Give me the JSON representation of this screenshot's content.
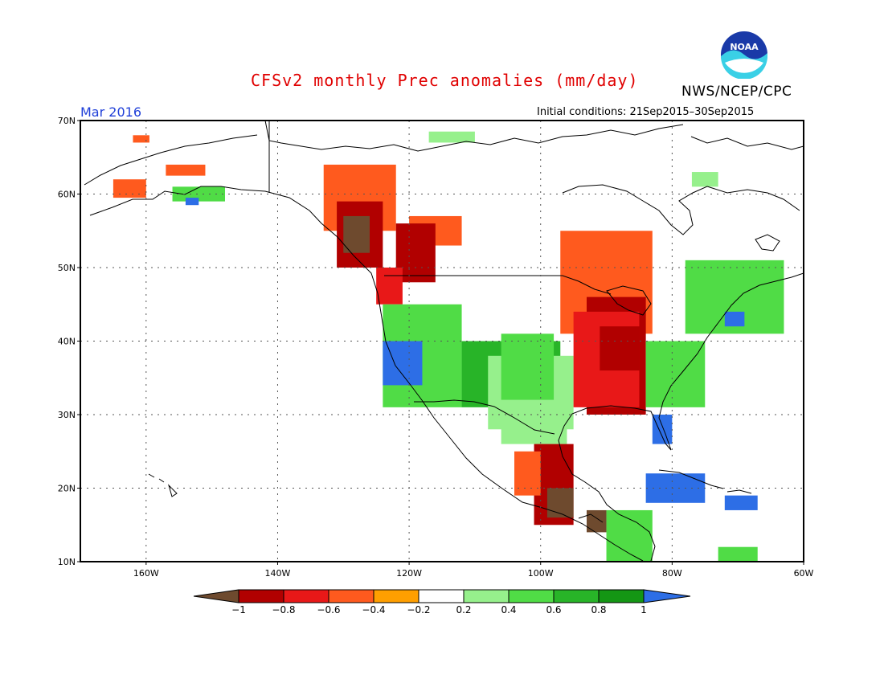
{
  "title": "CFSv2 monthly Prec anomalies (mm/day)",
  "agency": "NWS/NCEP/CPC",
  "logo_text": "NOAA",
  "month": "Mar 2016",
  "initial_conditions": "Initial conditions: 21Sep2015–30Sep2015",
  "colors": {
    "frame": "#000000",
    "coast": "#000000",
    "grid": "#555555"
  },
  "map": {
    "lat_range": [
      10,
      70
    ],
    "lon_range": [
      -170,
      -60
    ],
    "lat_ticks": [
      {
        "value": 70,
        "label": "70N"
      },
      {
        "value": 60,
        "label": "60N"
      },
      {
        "value": 50,
        "label": "50N"
      },
      {
        "value": 40,
        "label": "40N"
      },
      {
        "value": 30,
        "label": "30N"
      },
      {
        "value": 20,
        "label": "20N"
      },
      {
        "value": 10,
        "label": "10N"
      }
    ],
    "lon_ticks": [
      {
        "value": -160,
        "label": "160W"
      },
      {
        "value": -140,
        "label": "140W"
      },
      {
        "value": -120,
        "label": "120W"
      },
      {
        "value": -100,
        "label": "100W"
      },
      {
        "value": -80,
        "label": "80W"
      },
      {
        "value": -60,
        "label": "60W"
      }
    ]
  },
  "colorbar": {
    "levels": [
      "−1",
      "−0.8",
      "−0.6",
      "−0.4",
      "−0.2",
      "0.2",
      "0.4",
      "0.6",
      "0.8",
      "1"
    ],
    "colors": [
      "#6e4a2e",
      "#b10000",
      "#e81818",
      "#ff5a1e",
      "#ff9f00",
      "#ffffff",
      "#96f08c",
      "#50dc46",
      "#28b428",
      "#149614",
      "#2d6ee6"
    ]
  },
  "anomaly_regions": [
    {
      "name": "alaska-south-orange",
      "class": 3,
      "lat": [
        59.5,
        62
      ],
      "lon": [
        -165,
        -160
      ]
    },
    {
      "name": "alaska-southwest-orange",
      "class": 3,
      "lat": [
        62.5,
        64
      ],
      "lon": [
        -157,
        -151
      ]
    },
    {
      "name": "alaska-nw-orange",
      "class": 3,
      "lat": [
        67,
        68
      ],
      "lon": [
        -162,
        -159.5
      ]
    },
    {
      "name": "alaska-green",
      "class": 7,
      "lat": [
        59,
        61
      ],
      "lon": [
        -156,
        -148
      ]
    },
    {
      "name": "alaska-blue",
      "class": 10,
      "lat": [
        58.5,
        59.5
      ],
      "lon": [
        -154,
        -152
      ]
    },
    {
      "name": "bc-north-orange",
      "class": 3,
      "lat": [
        55,
        64
      ],
      "lon": [
        -133,
        -122
      ]
    },
    {
      "name": "bc-interior-orange",
      "class": 3,
      "lat": [
        53,
        57
      ],
      "lon": [
        -120,
        -112
      ]
    },
    {
      "name": "bc-coast-red",
      "class": 1,
      "lat": [
        50,
        59
      ],
      "lon": [
        -131,
        -124
      ]
    },
    {
      "name": "bc-coast-brown",
      "class": 0,
      "lat": [
        52,
        57
      ],
      "lon": [
        -130,
        -126
      ]
    },
    {
      "name": "rockies-red",
      "class": 1,
      "lat": [
        48,
        56
      ],
      "lon": [
        -122,
        -116
      ]
    },
    {
      "name": "nw-wa-red",
      "class": 2,
      "lat": [
        45,
        50
      ],
      "lon": [
        -125,
        -121
      ]
    },
    {
      "name": "west-green",
      "class": 7,
      "lat": [
        31,
        45
      ],
      "lon": [
        -124,
        -112
      ]
    },
    {
      "name": "california-blue",
      "class": 10,
      "lat": [
        34,
        40
      ],
      "lon": [
        -124,
        -118
      ]
    },
    {
      "name": "southwest-green",
      "class": 8,
      "lat": [
        31,
        40
      ],
      "lon": [
        -112,
        -97
      ]
    },
    {
      "name": "plains-light-green",
      "class": 6,
      "lat": [
        28,
        38
      ],
      "lon": [
        -108,
        -95
      ]
    },
    {
      "name": "plains-green",
      "class": 7,
      "lat": [
        32,
        41
      ],
      "lon": [
        -106,
        -98
      ]
    },
    {
      "name": "texas-light-green",
      "class": 6,
      "lat": [
        26,
        32
      ],
      "lon": [
        -106,
        -96
      ]
    },
    {
      "name": "great-lakes-orange",
      "class": 3,
      "lat": [
        41,
        55
      ],
      "lon": [
        -97,
        -83
      ]
    },
    {
      "name": "midwest-red",
      "class": 1,
      "lat": [
        30,
        46
      ],
      "lon": [
        -93,
        -84
      ]
    },
    {
      "name": "midwest-orangered",
      "class": 2,
      "lat": [
        31,
        44
      ],
      "lon": [
        -95,
        -85
      ]
    },
    {
      "name": "ohio-red",
      "class": 1,
      "lat": [
        36,
        42
      ],
      "lon": [
        -91,
        -85
      ]
    },
    {
      "name": "southeast-green",
      "class": 7,
      "lat": [
        31,
        40
      ],
      "lon": [
        -84,
        -75
      ]
    },
    {
      "name": "florida-blue",
      "class": 10,
      "lat": [
        26,
        30
      ],
      "lon": [
        -83,
        -80
      ]
    },
    {
      "name": "northeast-green",
      "class": 7,
      "lat": [
        41,
        51
      ],
      "lon": [
        -78,
        -63
      ]
    },
    {
      "name": "nova-scotia-blue",
      "class": 10,
      "lat": [
        42,
        44
      ],
      "lon": [
        -72,
        -69
      ]
    },
    {
      "name": "hudson-green",
      "class": 6,
      "lat": [
        61,
        63
      ],
      "lon": [
        -77,
        -73
      ]
    },
    {
      "name": "nunavut-green",
      "class": 6,
      "lat": [
        67,
        68.5
      ],
      "lon": [
        -117,
        -110
      ]
    },
    {
      "name": "mexico-red",
      "class": 1,
      "lat": [
        15,
        26
      ],
      "lon": [
        -101,
        -95
      ]
    },
    {
      "name": "mexico-orange",
      "class": 3,
      "lat": [
        19,
        25
      ],
      "lon": [
        -104,
        -100
      ]
    },
    {
      "name": "mexico-brown",
      "class": 0,
      "lat": [
        16,
        20
      ],
      "lon": [
        -99,
        -95
      ]
    },
    {
      "name": "central-america-brown",
      "class": 0,
      "lat": [
        14,
        17
      ],
      "lon": [
        -93,
        -90
      ]
    },
    {
      "name": "central-america-green",
      "class": 7,
      "lat": [
        10,
        17
      ],
      "lon": [
        -90,
        -83
      ]
    },
    {
      "name": "caribbean-blue",
      "class": 10,
      "lat": [
        18,
        22
      ],
      "lon": [
        -84,
        -75
      ]
    },
    {
      "name": "hispaniola-blue",
      "class": 10,
      "lat": [
        17,
        19
      ],
      "lon": [
        -72,
        -67
      ]
    },
    {
      "name": "venezuela-green",
      "class": 7,
      "lat": [
        10,
        12
      ],
      "lon": [
        -73,
        -67
      ]
    }
  ]
}
